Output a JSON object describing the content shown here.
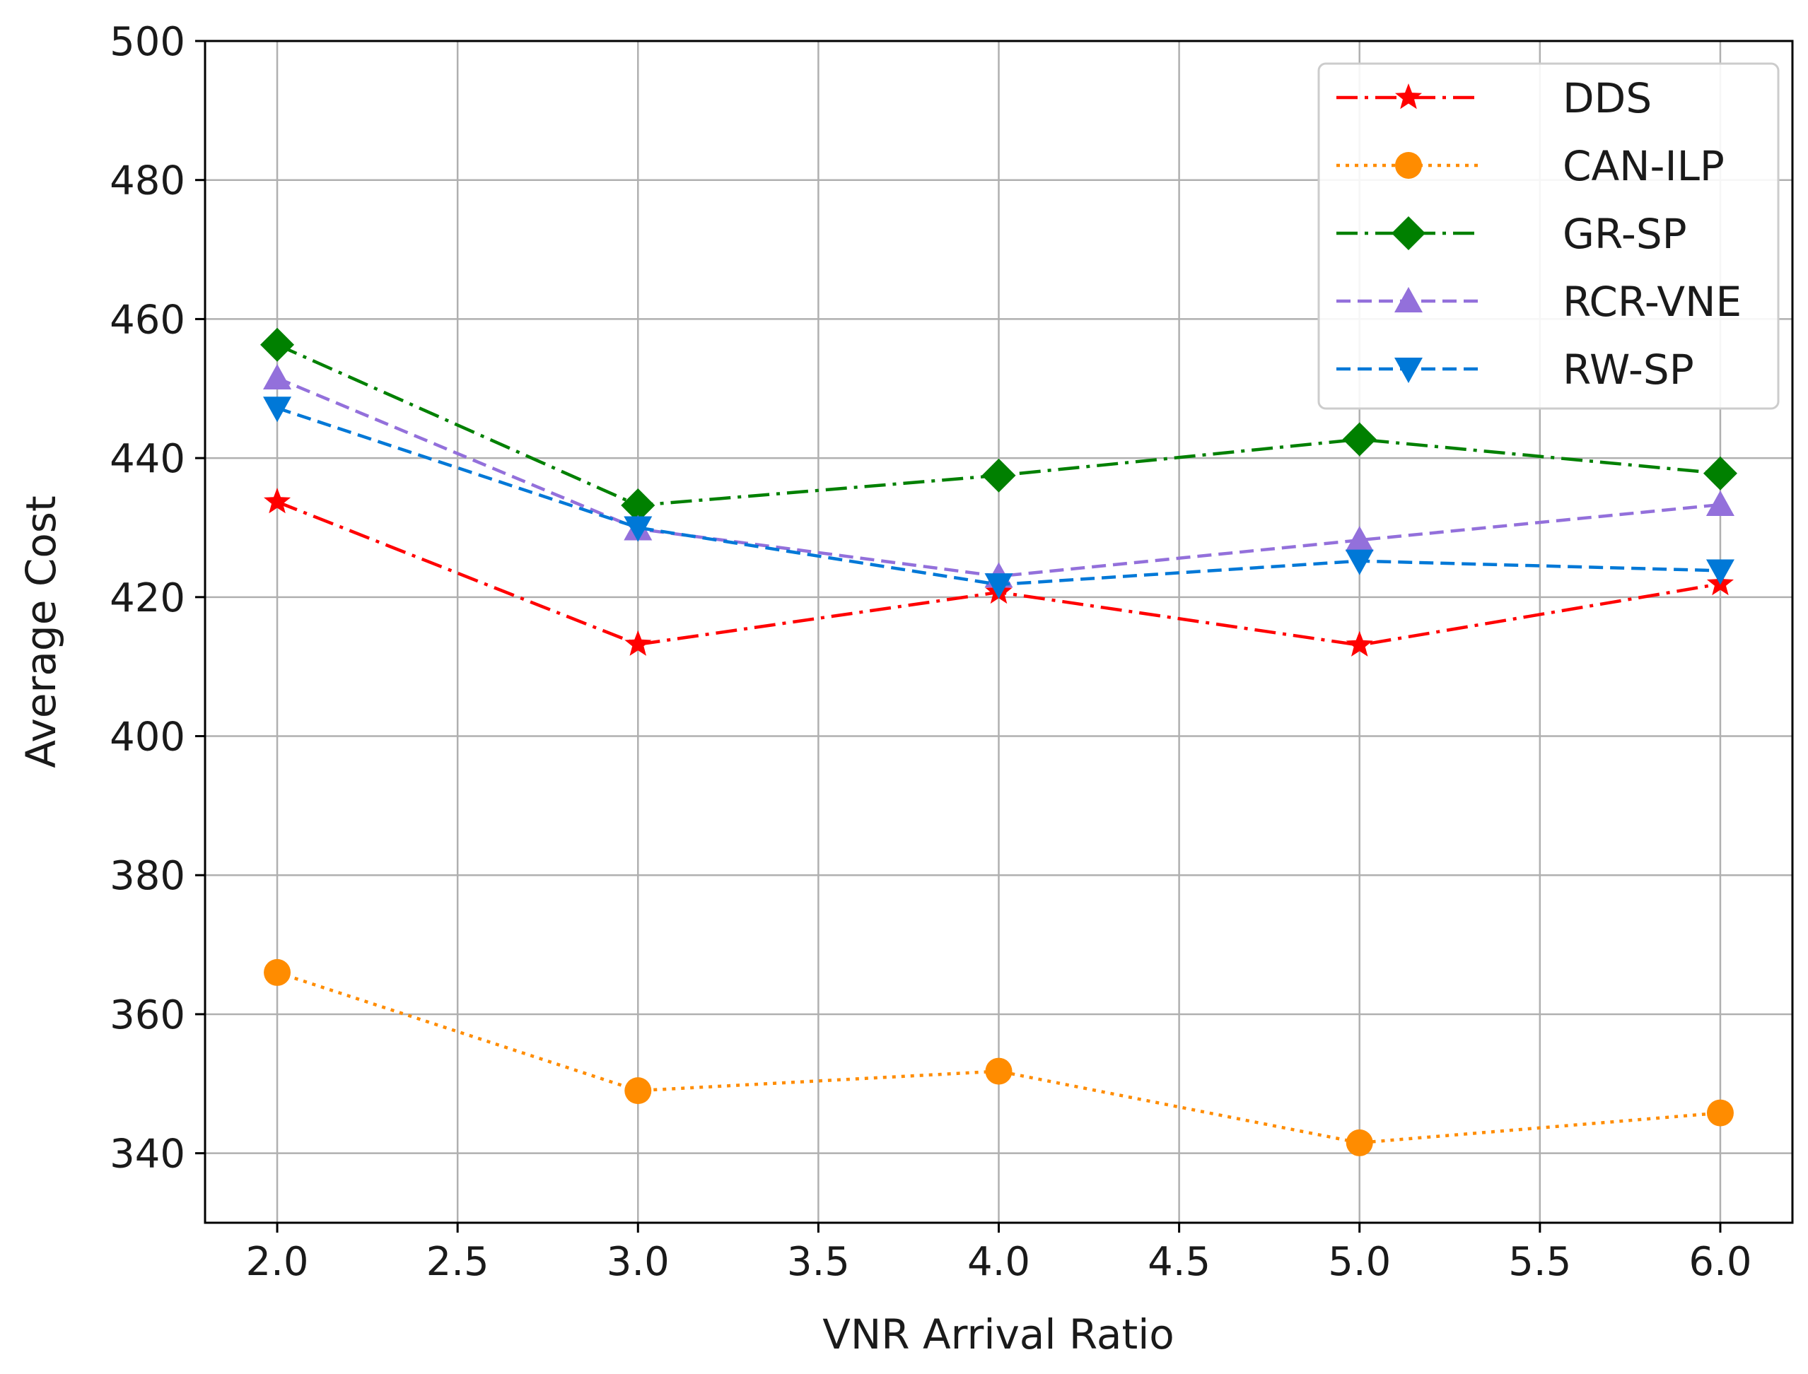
{
  "chart_data": {
    "type": "line",
    "title": "",
    "xlabel": "VNR Arrival Ratio",
    "ylabel": "Average Cost",
    "xlim": [
      1.8,
      6.2
    ],
    "ylim": [
      330,
      500
    ],
    "xticks": [
      2.0,
      2.5,
      3.0,
      3.5,
      4.0,
      4.5,
      5.0,
      5.5,
      6.0
    ],
    "xtick_labels": [
      "2.0",
      "2.5",
      "3.0",
      "3.5",
      "4.0",
      "4.5",
      "5.0",
      "5.5",
      "6.0"
    ],
    "yticks": [
      340,
      360,
      380,
      400,
      420,
      440,
      460,
      480,
      500
    ],
    "ytick_labels": [
      "340",
      "360",
      "380",
      "400",
      "420",
      "440",
      "460",
      "480",
      "500"
    ],
    "grid": true,
    "legend_position": "top-right",
    "x": [
      2.0,
      3.0,
      4.0,
      5.0,
      6.0
    ],
    "series": [
      {
        "name": "DDS",
        "values": [
          433.7,
          413.2,
          420.7,
          413.1,
          421.9
        ],
        "color": "#ff0000",
        "dash": "dashdot",
        "marker": "star"
      },
      {
        "name": "CAN-ILP",
        "values": [
          366.0,
          349.0,
          351.8,
          341.5,
          345.8
        ],
        "color": "#ff8c00",
        "dash": "dotted",
        "marker": "circle"
      },
      {
        "name": "GR-SP",
        "values": [
          456.3,
          433.2,
          437.5,
          442.7,
          437.8
        ],
        "color": "#008000",
        "dash": "dashdot",
        "marker": "diamond"
      },
      {
        "name": "RCR-VNE",
        "values": [
          451.5,
          429.8,
          423.0,
          428.2,
          433.3
        ],
        "color": "#9370db",
        "dash": "dashed",
        "marker": "triangle-up"
      },
      {
        "name": "RW-SP",
        "values": [
          447.2,
          430.0,
          421.8,
          425.2,
          423.8
        ],
        "color": "#0078d7",
        "dash": "dashed",
        "marker": "triangle-down"
      }
    ]
  }
}
